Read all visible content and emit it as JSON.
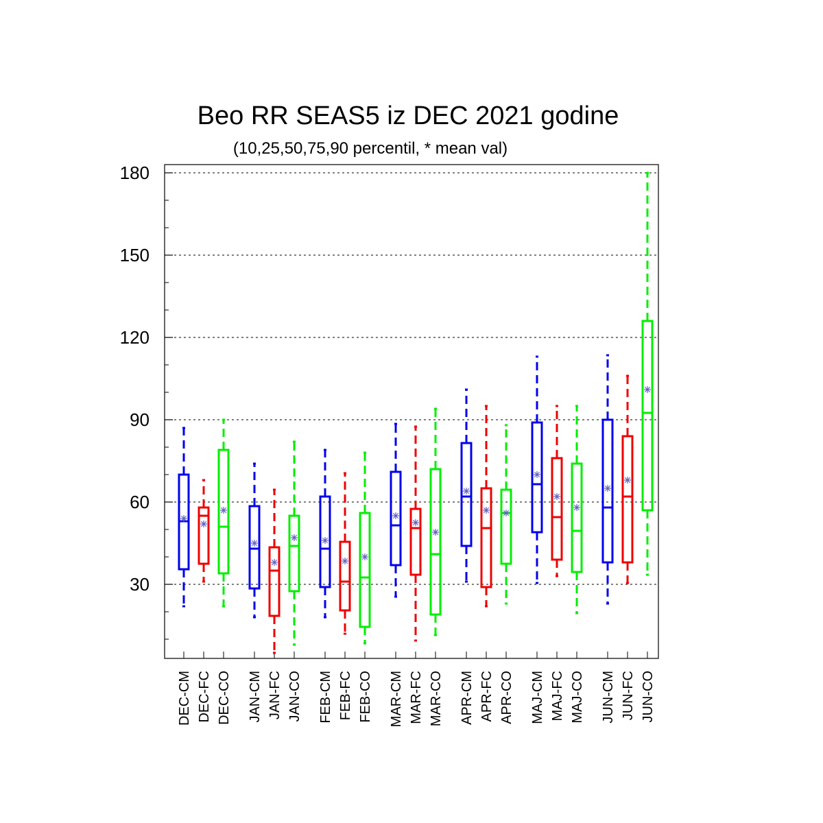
{
  "chart_data": {
    "type": "box",
    "title": "Beo RR SEAS5 iz DEC 2021 godine",
    "subtitle": "(10,25,50,75,90 percentil, * mean val)",
    "xlabel": "",
    "ylabel": "",
    "ylim": [
      3,
      183
    ],
    "yticks": [
      30,
      60,
      90,
      120,
      150,
      180
    ],
    "grid": true,
    "colors": {
      "CM": "#0000ee",
      "FC": "#ee0000",
      "CO": "#00ee00",
      "mean_marker": "#6060c0"
    },
    "boxes": [
      {
        "label": "DEC-CM",
        "p10": 22,
        "p25": 35.5,
        "median": 53,
        "p75": 70,
        "p90": 87,
        "mean": 54
      },
      {
        "label": "DEC-FC",
        "p10": 31,
        "p25": 37.5,
        "median": 55,
        "p75": 58,
        "p90": 68,
        "mean": 52
      },
      {
        "label": "DEC-CO",
        "p10": 22,
        "p25": 34,
        "median": 51,
        "p75": 79,
        "p90": 90,
        "mean": 57
      },
      {
        "label": "JAN-CM",
        "p10": 18,
        "p25": 28.5,
        "median": 43,
        "p75": 58.5,
        "p90": 74,
        "mean": 45
      },
      {
        "label": "JAN-FC",
        "p10": 5,
        "p25": 18.5,
        "median": 35,
        "p75": 43.5,
        "p90": 64.5,
        "mean": 38
      },
      {
        "label": "JAN-CO",
        "p10": 8,
        "p25": 27.5,
        "median": 44,
        "p75": 55,
        "p90": 82,
        "mean": 47
      },
      {
        "label": "FEB-CM",
        "p10": 18,
        "p25": 29,
        "median": 43,
        "p75": 62,
        "p90": 79,
        "mean": 46
      },
      {
        "label": "FEB-FC",
        "p10": 12,
        "p25": 20.5,
        "median": 31,
        "p75": 45.5,
        "p90": 70.5,
        "mean": 38.5
      },
      {
        "label": "FEB-CO",
        "p10": 8.5,
        "p25": 14.5,
        "median": 32.5,
        "p75": 56,
        "p90": 78,
        "mean": 40
      },
      {
        "label": "MAR-CM",
        "p10": 25.5,
        "p25": 37,
        "median": 51.5,
        "p75": 71,
        "p90": 88.5,
        "mean": 55
      },
      {
        "label": "MAR-FC",
        "p10": 9.5,
        "p25": 33.5,
        "median": 50.5,
        "p75": 57.5,
        "p90": 87.5,
        "mean": 52.5
      },
      {
        "label": "MAR-CO",
        "p10": 11.5,
        "p25": 19,
        "median": 41,
        "p75": 72,
        "p90": 94,
        "mean": 49
      },
      {
        "label": "APR-CM",
        "p10": 31,
        "p25": 44,
        "median": 62,
        "p75": 81.5,
        "p90": 101,
        "mean": 64
      },
      {
        "label": "APR-FC",
        "p10": 22,
        "p25": 29,
        "median": 50.5,
        "p75": 65,
        "p90": 95,
        "mean": 57
      },
      {
        "label": "APR-CO",
        "p10": 23,
        "p25": 37.5,
        "median": 56,
        "p75": 64.5,
        "p90": 88,
        "mean": 56
      },
      {
        "label": "MAJ-CM",
        "p10": 30.5,
        "p25": 49,
        "median": 66.5,
        "p75": 89,
        "p90": 113,
        "mean": 70
      },
      {
        "label": "MAJ-FC",
        "p10": 33,
        "p25": 39,
        "median": 54.5,
        "p75": 76,
        "p90": 95,
        "mean": 62
      },
      {
        "label": "MAJ-CO",
        "p10": 19.5,
        "p25": 34.5,
        "median": 49.5,
        "p75": 74,
        "p90": 95,
        "mean": 58
      },
      {
        "label": "JUN-CM",
        "p10": 23,
        "p25": 38,
        "median": 58,
        "p75": 90,
        "p90": 113.5,
        "mean": 65
      },
      {
        "label": "JUN-FC",
        "p10": 30.5,
        "p25": 38,
        "median": 62,
        "p75": 84,
        "p90": 106,
        "mean": 68
      },
      {
        "label": "JUN-CO",
        "p10": 33.5,
        "p25": 57,
        "median": 92.5,
        "p75": 126,
        "p90": 180,
        "mean": 101
      }
    ]
  }
}
